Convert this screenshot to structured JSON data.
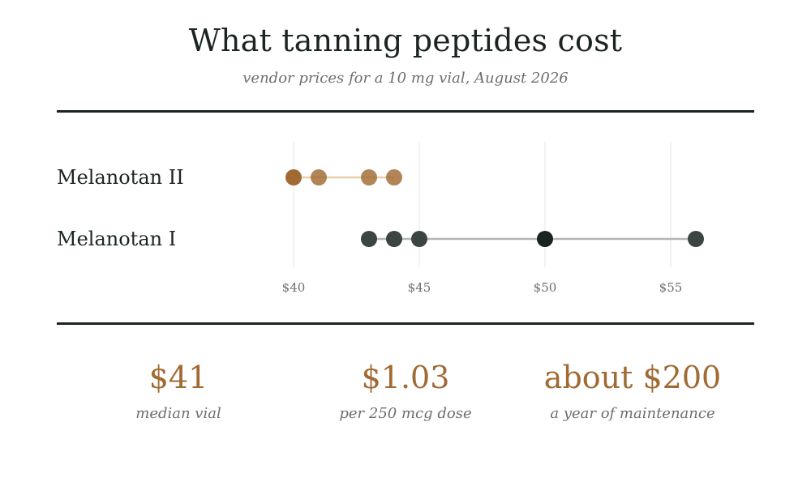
{
  "title": "What tanning peptides cost",
  "subtitle": "vendor prices for a 10 mg vial, August 2026",
  "chart_data": {
    "type": "scatter",
    "orientation": "horizontal dot strip",
    "x_ticks": [
      "$40",
      "$45",
      "$50",
      "$55"
    ],
    "x_tick_values": [
      40,
      45,
      50,
      55
    ],
    "xlim": [
      40,
      56
    ],
    "grid": true,
    "series": [
      {
        "name": "Melanotan II",
        "color": "#a06a32",
        "values": [
          40,
          41,
          43,
          44
        ],
        "highlight": 40
      },
      {
        "name": "Melanotan I",
        "color": "#3d4541",
        "values": [
          43,
          44,
          45,
          50,
          56
        ],
        "highlight": 50
      }
    ]
  },
  "stats": [
    {
      "value": "$41",
      "label": "median vial"
    },
    {
      "value": "$1.03",
      "label": "per 250 mcg dose"
    },
    {
      "value": "about $200",
      "label": "a year of maintenance"
    }
  ]
}
